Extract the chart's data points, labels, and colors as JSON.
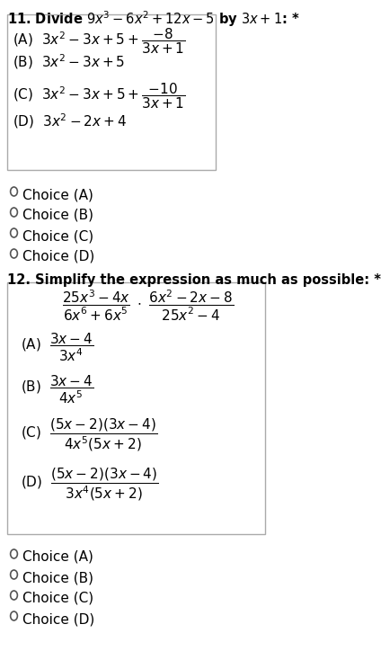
{
  "bg_color": "#ffffff",
  "q11_title": "11. Divide $9x^3 - 6x^2 + 12x - 5$ by $3x + 1$: *",
  "q11_options": [
    "(A)  $3x^2 - 3x + 5 + \\dfrac{-8}{3x+1}$",
    "(B)  $3x^2 - 3x + 5$",
    "(C)  $3x^2 - 3x + 5 + \\dfrac{-10}{3x+1}$",
    "(D)  $3x^2 - 2x + 4$"
  ],
  "q11_choices": [
    "Choice (A)",
    "Choice (B)",
    "Choice (C)",
    "Choice (D)"
  ],
  "q12_title": "12. Simplify the expression as much as possible: *",
  "q12_expr_num": "$\\dfrac{25x^3 - 4x}{6x^6 + 6x^5}$",
  "q12_expr_dot": "$\\cdot$",
  "q12_expr_den": "$\\dfrac{6x^2 - 2x - 8}{25x^2 - 4}$",
  "q12_options": [
    "(A)  $\\dfrac{3x-4}{3x^4}$",
    "(B)  $\\dfrac{3x-4}{4x^5}$",
    "(C)  $\\dfrac{(5x-2)(3x-4)}{4x^5(5x+2)}$",
    "(D)  $\\dfrac{(5x-2)(3x-4)}{3x^4(5x+2)}$"
  ],
  "q12_choices": [
    "Choice (A)",
    "Choice (B)",
    "Choice (C)",
    "Choice (D)"
  ],
  "title_fontsize": 11,
  "option_fontsize": 12,
  "choice_fontsize": 11,
  "box_color": "#d0d0d0"
}
